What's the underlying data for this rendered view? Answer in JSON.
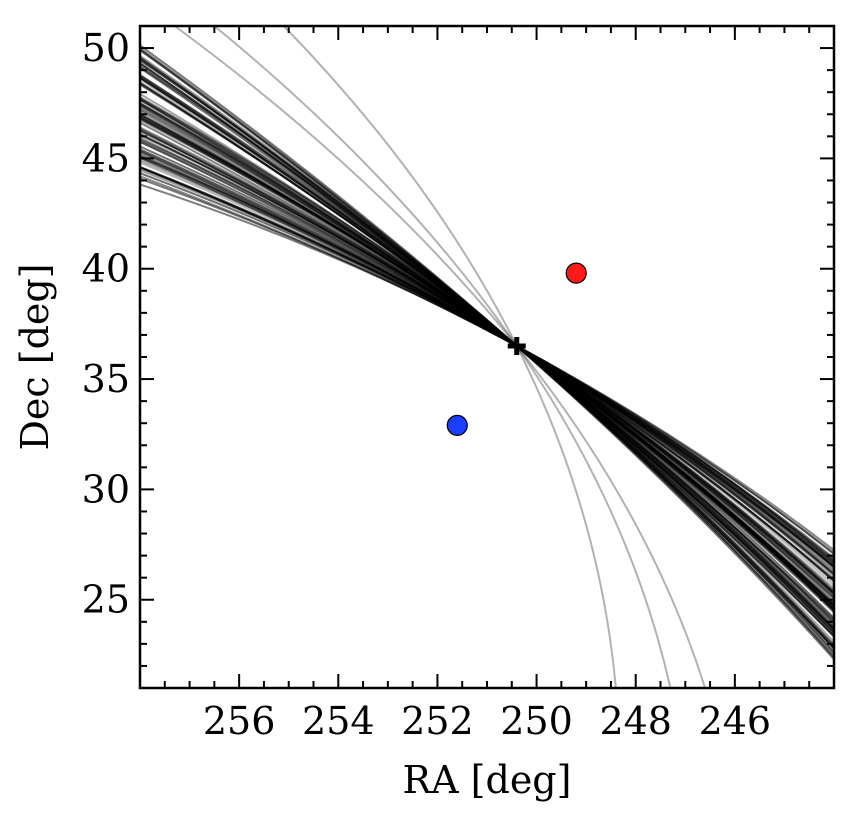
{
  "chart_data": {
    "type": "line",
    "xlabel": "RA [deg]",
    "ylabel": "Dec [deg]",
    "xlim": [
      258,
      244
    ],
    "ylim": [
      21,
      51
    ],
    "x_inverted": true,
    "grid": false,
    "xticks": [
      256,
      254,
      252,
      250,
      248,
      246
    ],
    "xtick_labels": [
      "256",
      "254",
      "252",
      "250",
      "248",
      "246"
    ],
    "yticks": [
      25,
      30,
      35,
      40,
      45,
      50
    ],
    "ytick_labels": [
      "25",
      "30",
      "35",
      "40",
      "45",
      "50"
    ],
    "pivot": {
      "x": 250.4,
      "y": 36.5,
      "marker": "plus",
      "color": "#000000"
    },
    "points": [
      {
        "x": 249.2,
        "y": 39.8,
        "color": "#ff1a1a",
        "marker": "circle"
      },
      {
        "x": 251.6,
        "y": 32.9,
        "color": "#1a3dff",
        "marker": "circle"
      }
    ],
    "curve_family": {
      "description_count": 90,
      "color": "#000000",
      "left_edge_y_range": [
        43.5,
        50.5
      ],
      "right_edge_y_range": [
        22.0,
        27.5
      ],
      "outlier_curves": [
        {
          "x": [
            255.1,
            250.4,
            248.4
          ],
          "y": [
            51.0,
            36.5,
            21.0
          ]
        },
        {
          "x": [
            256.5,
            250.4,
            247.3
          ],
          "y": [
            51.0,
            36.5,
            21.0
          ]
        },
        {
          "x": [
            257.3,
            250.4,
            246.6
          ],
          "y": [
            51.0,
            36.5,
            21.0
          ]
        }
      ]
    }
  }
}
